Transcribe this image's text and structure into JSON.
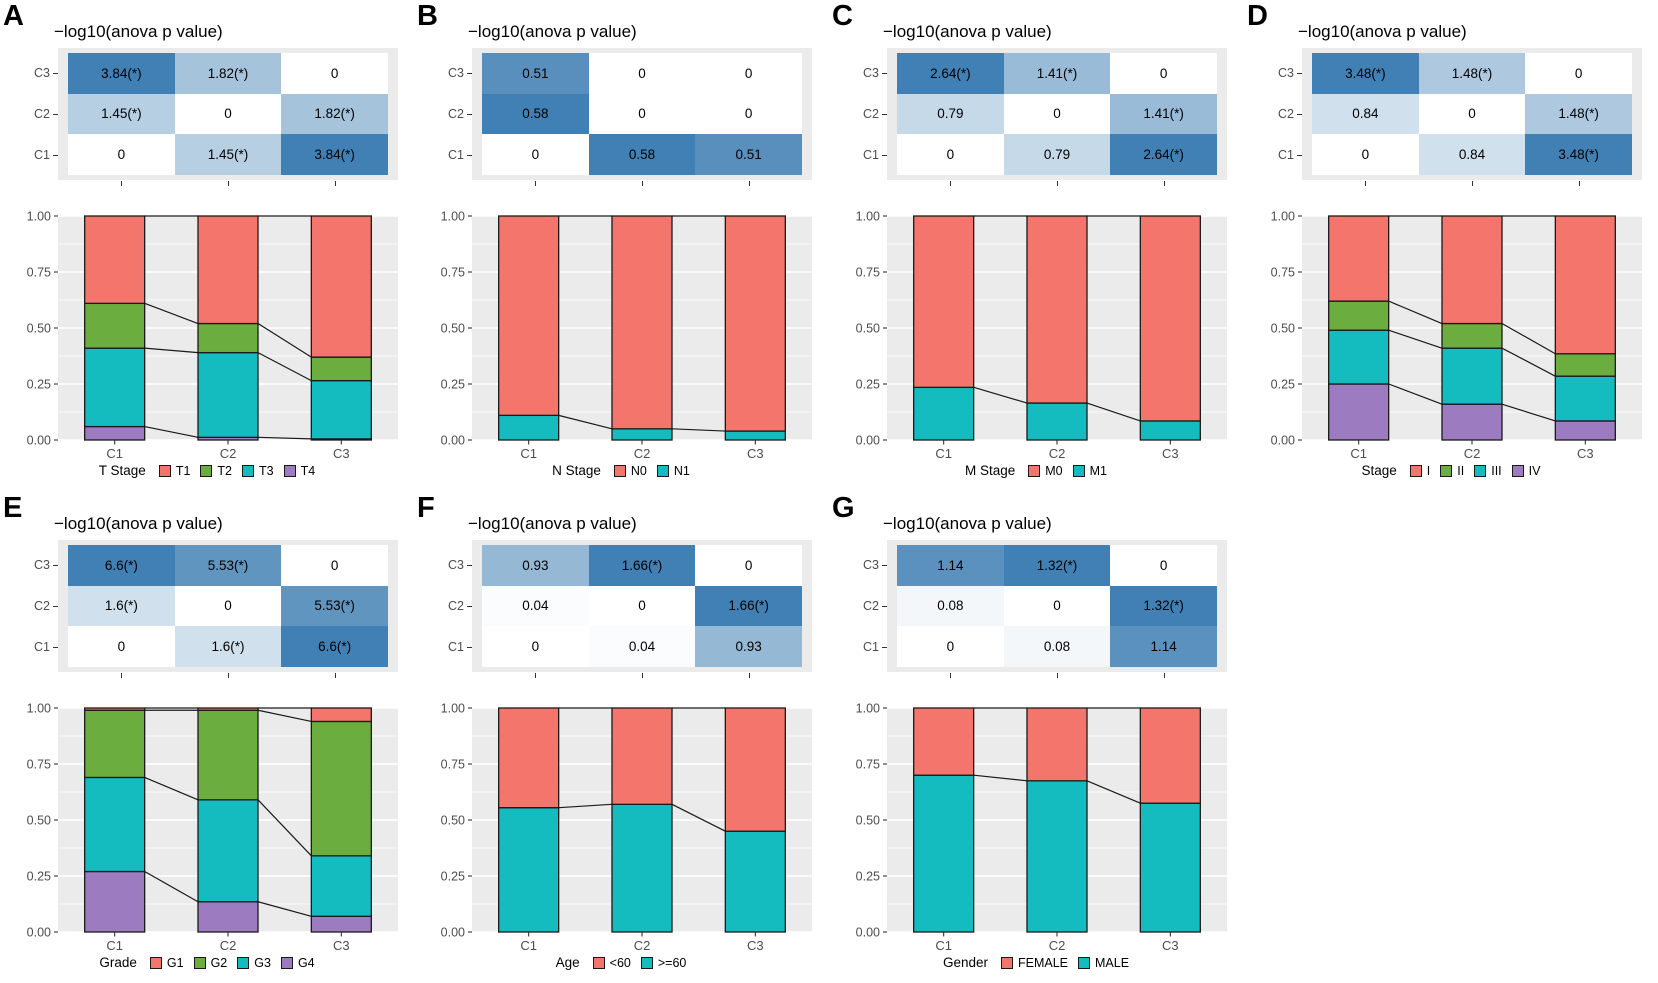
{
  "palette": {
    "red": "#F3756C",
    "green": "#6CAD3F",
    "teal": "#14BCC0",
    "purple": "#9C7BC0",
    "heat_high": "#4180B4",
    "heat_low": "#FFFFFF",
    "plot_bg": "#EBEBEB",
    "grid": "#FFFFFF",
    "axis_text": "#4D4D4D",
    "bar_stroke": "#1A1A1A"
  },
  "chart_data": [
    {
      "panel": "A",
      "type": "heatmap+stacked_bar",
      "heatmap": {
        "title": "−log10(anova p value)",
        "rows": [
          "C3",
          "C2",
          "C1"
        ],
        "columns": [
          "C1",
          "C2",
          "C3"
        ],
        "max": 3.84,
        "values": [
          [
            3.84,
            1.82,
            0
          ],
          [
            1.45,
            0,
            1.82
          ],
          [
            0,
            1.45,
            3.84
          ]
        ],
        "labels": [
          [
            "3.84(*)",
            "1.82(*)",
            "0"
          ],
          [
            "1.45(*)",
            "0",
            "1.82(*)"
          ],
          [
            "0",
            "1.45(*)",
            "3.84(*)"
          ]
        ]
      },
      "bars": {
        "categories": [
          "C1",
          "C2",
          "C3"
        ],
        "ylim": [
          0,
          1
        ],
        "y_ticks": [
          "0.00",
          "0.25",
          "0.50",
          "0.75",
          "1.00"
        ],
        "stack_order_bottom_to_top": [
          "T4",
          "T3",
          "T2",
          "T1"
        ],
        "series": [
          {
            "name": "T4",
            "color": "purple",
            "values": [
              0.06,
              0.012,
              0.005
            ]
          },
          {
            "name": "T3",
            "color": "teal",
            "values": [
              0.35,
              0.378,
              0.26
            ]
          },
          {
            "name": "T2",
            "color": "green",
            "values": [
              0.2,
              0.13,
              0.105
            ]
          },
          {
            "name": "T1",
            "color": "red",
            "values": [
              0.39,
              0.48,
              0.63
            ]
          }
        ]
      },
      "legend": {
        "title": "T Stage",
        "items": [
          {
            "label": "T1",
            "color": "red"
          },
          {
            "label": "T2",
            "color": "green"
          },
          {
            "label": "T3",
            "color": "teal"
          },
          {
            "label": "T4",
            "color": "purple"
          }
        ]
      }
    },
    {
      "panel": "B",
      "type": "heatmap+stacked_bar",
      "heatmap": {
        "title": "−log10(anova p value)",
        "rows": [
          "C3",
          "C2",
          "C1"
        ],
        "columns": [
          "C1",
          "C2",
          "C3"
        ],
        "max": 0.58,
        "values": [
          [
            0.51,
            0,
            0
          ],
          [
            0.58,
            0,
            0
          ],
          [
            0,
            0.58,
            0.51
          ]
        ],
        "labels": [
          [
            "0.51",
            "0",
            "0"
          ],
          [
            "0.58",
            "0",
            "0"
          ],
          [
            "0",
            "0.58",
            "0.51"
          ]
        ]
      },
      "bars": {
        "categories": [
          "C1",
          "C2",
          "C3"
        ],
        "ylim": [
          0,
          1
        ],
        "y_ticks": [
          "0.00",
          "0.25",
          "0.50",
          "0.75",
          "1.00"
        ],
        "stack_order_bottom_to_top": [
          "N1",
          "N0"
        ],
        "series": [
          {
            "name": "N1",
            "color": "teal",
            "values": [
              0.11,
              0.05,
              0.04
            ]
          },
          {
            "name": "N0",
            "color": "red",
            "values": [
              0.89,
              0.95,
              0.96
            ]
          }
        ]
      },
      "legend": {
        "title": "N Stage",
        "items": [
          {
            "label": "N0",
            "color": "red"
          },
          {
            "label": "N1",
            "color": "teal"
          }
        ]
      }
    },
    {
      "panel": "C",
      "type": "heatmap+stacked_bar",
      "heatmap": {
        "title": "−log10(anova p value)",
        "rows": [
          "C3",
          "C2",
          "C1"
        ],
        "columns": [
          "C1",
          "C2",
          "C3"
        ],
        "max": 2.64,
        "values": [
          [
            2.64,
            1.41,
            0
          ],
          [
            0.79,
            0,
            1.41
          ],
          [
            0,
            0.79,
            2.64
          ]
        ],
        "labels": [
          [
            "2.64(*)",
            "1.41(*)",
            "0"
          ],
          [
            "0.79",
            "0",
            "1.41(*)"
          ],
          [
            "0",
            "0.79",
            "2.64(*)"
          ]
        ]
      },
      "bars": {
        "categories": [
          "C1",
          "C2",
          "C3"
        ],
        "ylim": [
          0,
          1
        ],
        "y_ticks": [
          "0.00",
          "0.25",
          "0.50",
          "0.75",
          "1.00"
        ],
        "stack_order_bottom_to_top": [
          "M1",
          "M0"
        ],
        "series": [
          {
            "name": "M1",
            "color": "teal",
            "values": [
              0.235,
              0.165,
              0.085
            ]
          },
          {
            "name": "M0",
            "color": "red",
            "values": [
              0.765,
              0.835,
              0.915
            ]
          }
        ]
      },
      "legend": {
        "title": "M Stage",
        "items": [
          {
            "label": "M0",
            "color": "red"
          },
          {
            "label": "M1",
            "color": "teal"
          }
        ]
      }
    },
    {
      "panel": "D",
      "type": "heatmap+stacked_bar",
      "heatmap": {
        "title": "−log10(anova p value)",
        "rows": [
          "C3",
          "C2",
          "C1"
        ],
        "columns": [
          "C1",
          "C2",
          "C3"
        ],
        "max": 3.48,
        "values": [
          [
            3.48,
            1.48,
            0
          ],
          [
            0.84,
            0,
            1.48
          ],
          [
            0,
            0.84,
            3.48
          ]
        ],
        "labels": [
          [
            "3.48(*)",
            "1.48(*)",
            "0"
          ],
          [
            "0.84",
            "0",
            "1.48(*)"
          ],
          [
            "0",
            "0.84",
            "3.48(*)"
          ]
        ]
      },
      "bars": {
        "categories": [
          "C1",
          "C2",
          "C3"
        ],
        "ylim": [
          0,
          1
        ],
        "y_ticks": [
          "0.00",
          "0.25",
          "0.50",
          "0.75",
          "1.00"
        ],
        "stack_order_bottom_to_top": [
          "IV",
          "III",
          "II",
          "I"
        ],
        "series": [
          {
            "name": "IV",
            "color": "purple",
            "values": [
              0.25,
              0.16,
              0.085
            ]
          },
          {
            "name": "III",
            "color": "teal",
            "values": [
              0.24,
              0.25,
              0.2
            ]
          },
          {
            "name": "II",
            "color": "green",
            "values": [
              0.13,
              0.11,
              0.1
            ]
          },
          {
            "name": "I",
            "color": "red",
            "values": [
              0.38,
              0.48,
              0.615
            ]
          }
        ]
      },
      "legend": {
        "title": "Stage",
        "items": [
          {
            "label": "I",
            "color": "red"
          },
          {
            "label": "II",
            "color": "green"
          },
          {
            "label": "III",
            "color": "teal"
          },
          {
            "label": "IV",
            "color": "purple"
          }
        ]
      }
    },
    {
      "panel": "E",
      "type": "heatmap+stacked_bar",
      "heatmap": {
        "title": "−log10(anova p value)",
        "rows": [
          "C3",
          "C2",
          "C1"
        ],
        "columns": [
          "C1",
          "C2",
          "C3"
        ],
        "max": 6.6,
        "values": [
          [
            6.6,
            5.53,
            0
          ],
          [
            1.6,
            0,
            5.53
          ],
          [
            0,
            1.6,
            6.6
          ]
        ],
        "labels": [
          [
            "6.6(*)",
            "5.53(*)",
            "0"
          ],
          [
            "1.6(*)",
            "0",
            "5.53(*)"
          ],
          [
            "0",
            "1.6(*)",
            "6.6(*)"
          ]
        ]
      },
      "bars": {
        "categories": [
          "C1",
          "C2",
          "C3"
        ],
        "ylim": [
          0,
          1
        ],
        "y_ticks": [
          "0.00",
          "0.25",
          "0.50",
          "0.75",
          "1.00"
        ],
        "stack_order_bottom_to_top": [
          "G4",
          "G3",
          "G2",
          "G1"
        ],
        "series": [
          {
            "name": "G4",
            "color": "purple",
            "values": [
              0.27,
              0.135,
              0.07
            ]
          },
          {
            "name": "G3",
            "color": "teal",
            "values": [
              0.42,
              0.455,
              0.27
            ]
          },
          {
            "name": "G2",
            "color": "green",
            "values": [
              0.3,
              0.4,
              0.6
            ]
          },
          {
            "name": "G1",
            "color": "red",
            "values": [
              0.01,
              0.01,
              0.06
            ]
          }
        ]
      },
      "legend": {
        "title": "Grade",
        "items": [
          {
            "label": "G1",
            "color": "red"
          },
          {
            "label": "G2",
            "color": "green"
          },
          {
            "label": "G3",
            "color": "teal"
          },
          {
            "label": "G4",
            "color": "purple"
          }
        ]
      }
    },
    {
      "panel": "F",
      "type": "heatmap+stacked_bar",
      "heatmap": {
        "title": "−log10(anova p value)",
        "rows": [
          "C3",
          "C2",
          "C1"
        ],
        "columns": [
          "C1",
          "C2",
          "C3"
        ],
        "max": 1.66,
        "values": [
          [
            0.93,
            1.66,
            0
          ],
          [
            0.04,
            0,
            1.66
          ],
          [
            0,
            0.04,
            0.93
          ]
        ],
        "labels": [
          [
            "0.93",
            "1.66(*)",
            "0"
          ],
          [
            "0.04",
            "0",
            "1.66(*)"
          ],
          [
            "0",
            "0.04",
            "0.93"
          ]
        ]
      },
      "bars": {
        "categories": [
          "C1",
          "C2",
          "C3"
        ],
        "ylim": [
          0,
          1
        ],
        "y_ticks": [
          "0.00",
          "0.25",
          "0.50",
          "0.75",
          "1.00"
        ],
        "stack_order_bottom_to_top": [
          ">=60",
          "<60"
        ],
        "series": [
          {
            "name": ">=60",
            "color": "teal",
            "values": [
              0.555,
              0.57,
              0.45
            ]
          },
          {
            "name": "<60",
            "color": "red",
            "values": [
              0.445,
              0.43,
              0.55
            ]
          }
        ]
      },
      "legend": {
        "title": "Age",
        "items": [
          {
            "label": "<60",
            "color": "red"
          },
          {
            "label": ">=60",
            "color": "teal"
          }
        ]
      }
    },
    {
      "panel": "G",
      "type": "heatmap+stacked_bar",
      "heatmap": {
        "title": "−log10(anova p value)",
        "rows": [
          "C3",
          "C2",
          "C1"
        ],
        "columns": [
          "C1",
          "C2",
          "C3"
        ],
        "max": 1.32,
        "values": [
          [
            1.14,
            1.32,
            0
          ],
          [
            0.08,
            0,
            1.32
          ],
          [
            0,
            0.08,
            1.14
          ]
        ],
        "labels": [
          [
            "1.14",
            "1.32(*)",
            "0"
          ],
          [
            "0.08",
            "0",
            "1.32(*)"
          ],
          [
            "0",
            "0.08",
            "1.14"
          ]
        ]
      },
      "bars": {
        "categories": [
          "C1",
          "C2",
          "C3"
        ],
        "ylim": [
          0,
          1
        ],
        "y_ticks": [
          "0.00",
          "0.25",
          "0.50",
          "0.75",
          "1.00"
        ],
        "stack_order_bottom_to_top": [
          "MALE",
          "FEMALE"
        ],
        "series": [
          {
            "name": "MALE",
            "color": "teal",
            "values": [
              0.7,
              0.675,
              0.575
            ]
          },
          {
            "name": "FEMALE",
            "color": "red",
            "values": [
              0.3,
              0.325,
              0.425
            ]
          }
        ]
      },
      "legend": {
        "title": "Gender",
        "items": [
          {
            "label": "FEMALE",
            "color": "red"
          },
          {
            "label": "MALE",
            "color": "teal"
          }
        ]
      }
    }
  ]
}
